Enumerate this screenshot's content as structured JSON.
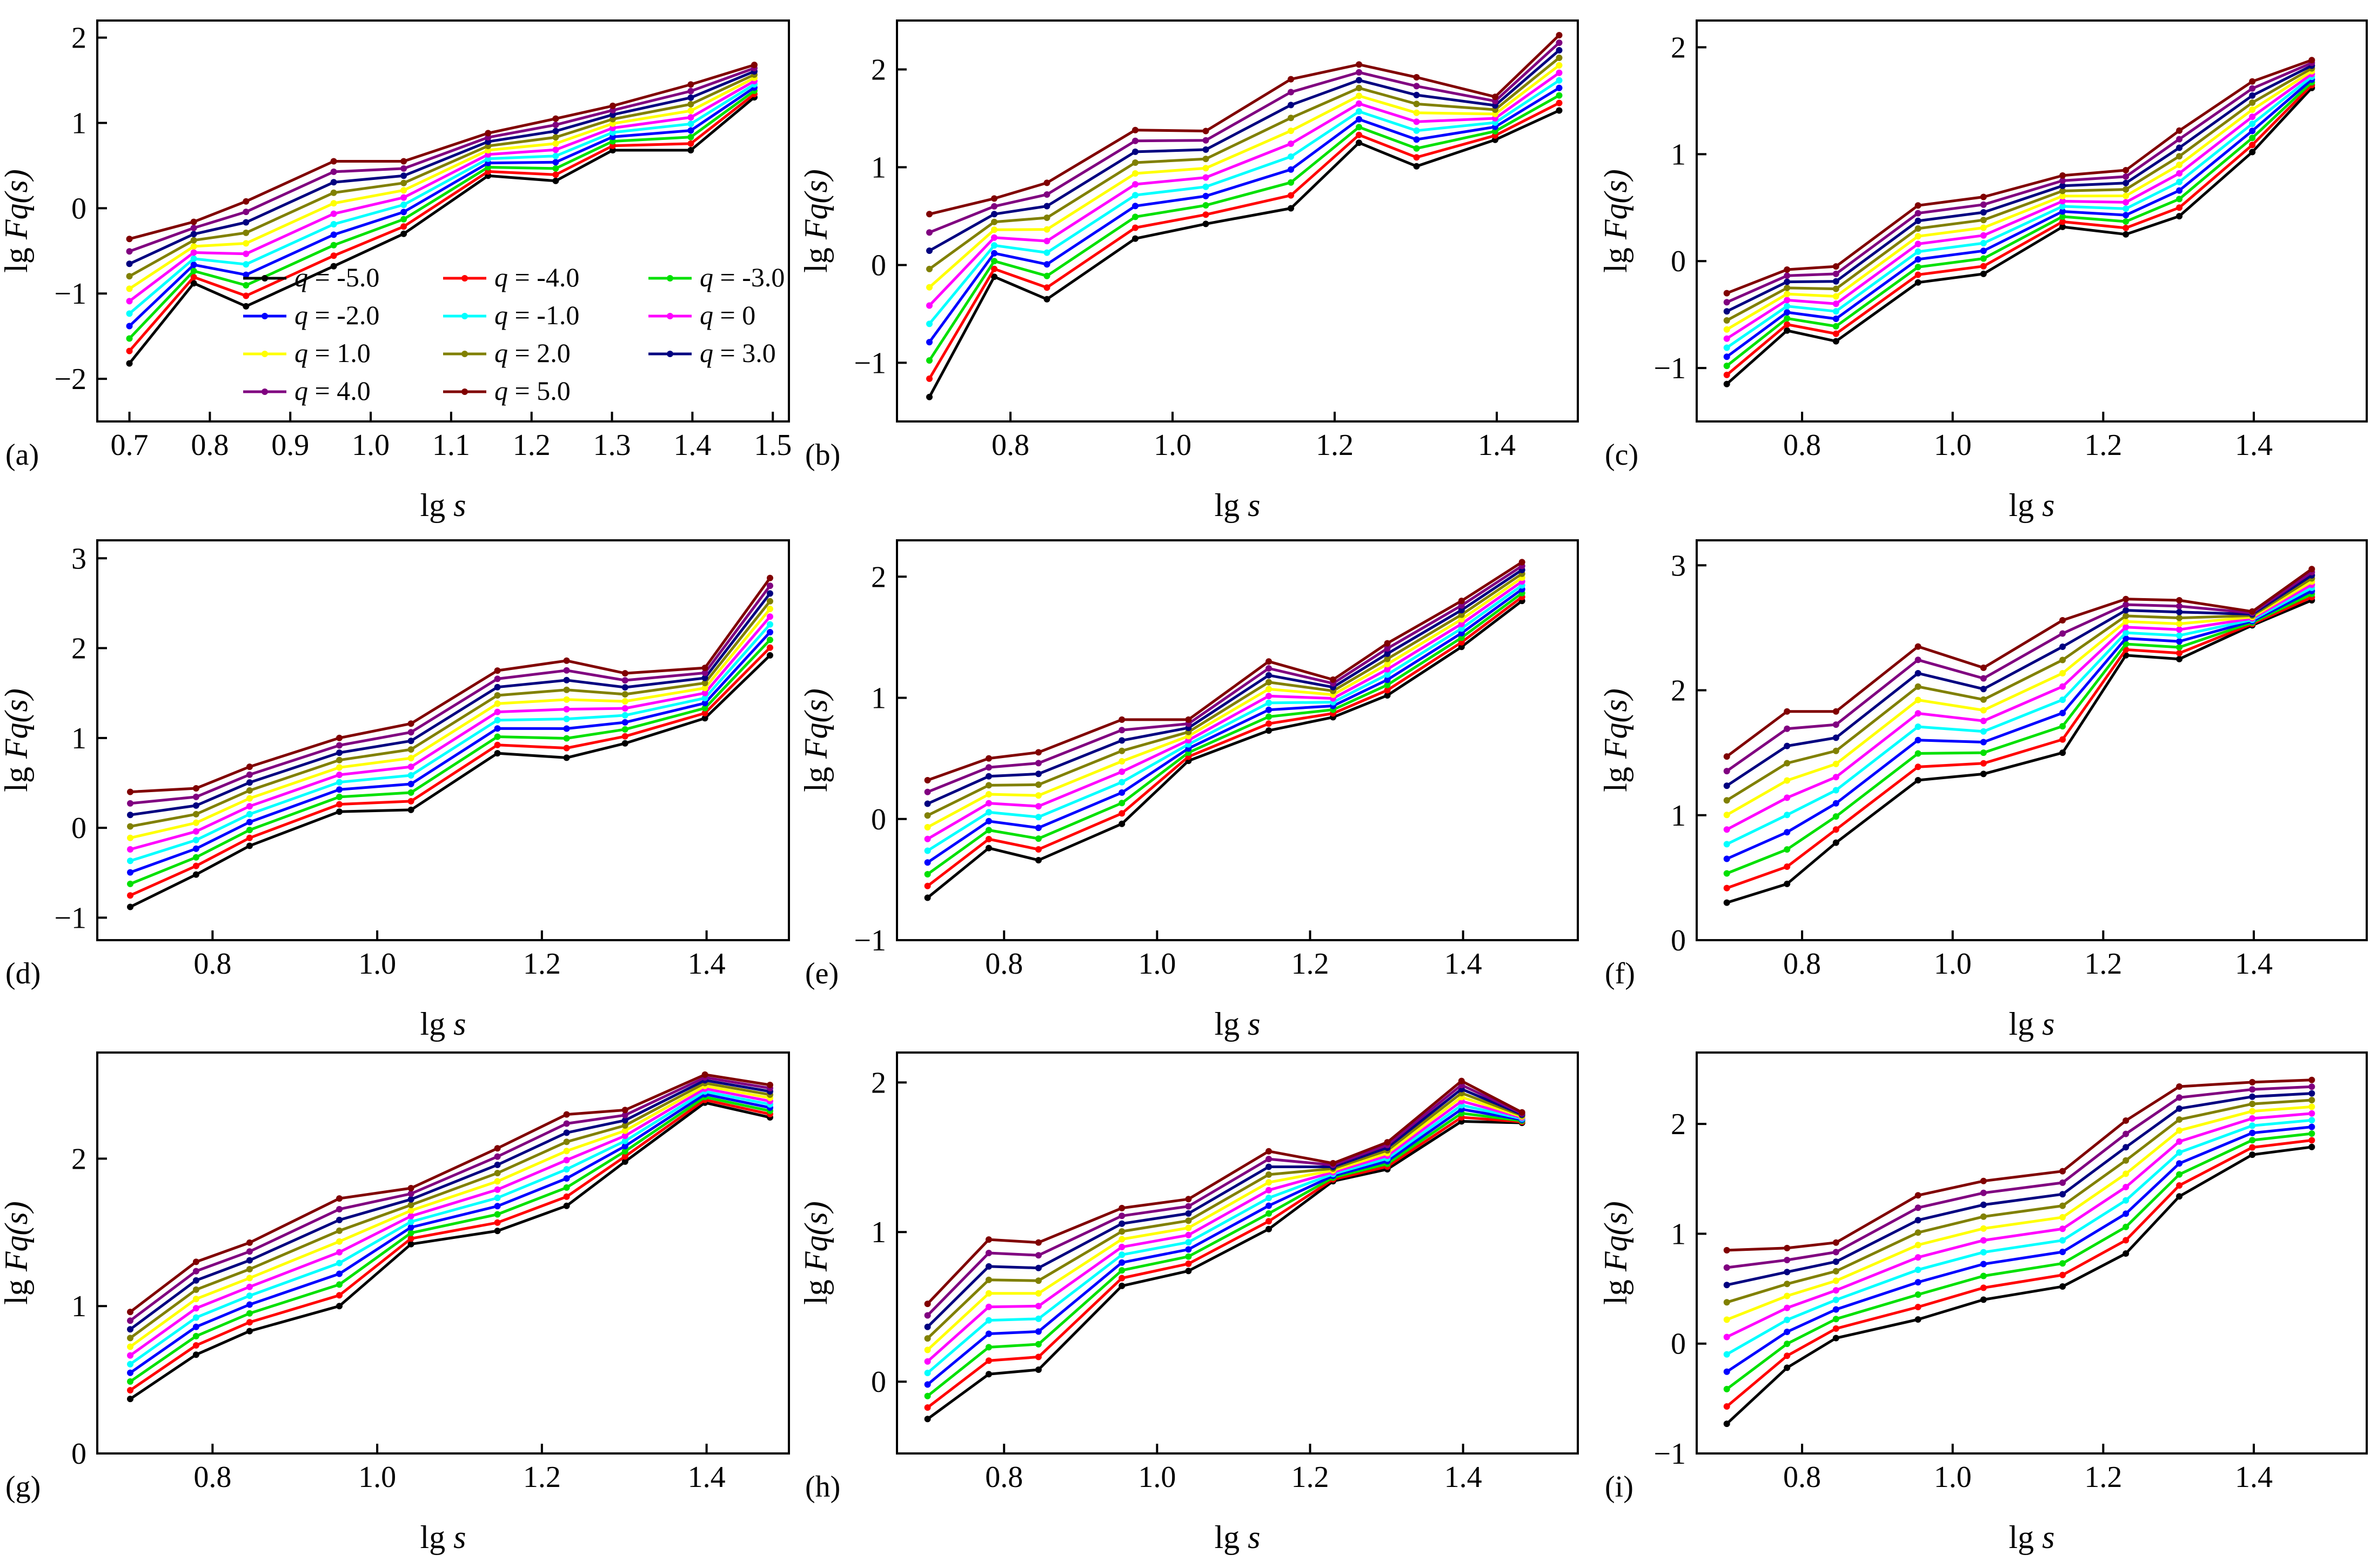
{
  "figure": {
    "x_axis_label": "lg s",
    "y_axis_label": "lg Fq(s)"
  },
  "series_styles": [
    {
      "q": "-5.0",
      "color": "#000000"
    },
    {
      "q": "-4.0",
      "color": "#ff0000"
    },
    {
      "q": "-3.0",
      "color": "#00e000"
    },
    {
      "q": "-2.0",
      "color": "#0000ff"
    },
    {
      "q": "-1.0",
      "color": "#00ffff"
    },
    {
      "q": "0",
      "color": "#ff00ff"
    },
    {
      "q": "1.0",
      "color": "#ffff00"
    },
    {
      "q": "2.0",
      "color": "#808000"
    },
    {
      "q": "3.0",
      "color": "#000080"
    },
    {
      "q": "4.0",
      "color": "#800080"
    },
    {
      "q": "5.0",
      "color": "#800000"
    }
  ],
  "legend": {
    "location": "panel (a), lower right",
    "entries": [
      "q = -5.0",
      "q = -4.0",
      "q = -3.0",
      "q = -2.0",
      "q = -1.0",
      "q = 0",
      "q = 1.0",
      "q = 2.0",
      "q = 3.0",
      "q = 4.0",
      "q = 5.0"
    ]
  },
  "chart_data": [
    {
      "panel": "(a)",
      "type": "line",
      "xlabel": "lg s",
      "ylabel": "lg Fq(s)",
      "xlim": [
        0.66,
        1.52
      ],
      "ylim": [
        -2.5,
        2.2
      ],
      "xticks": [
        "0.7",
        "0.8",
        "0.9",
        "1.0",
        "1.1",
        "1.2",
        "1.3",
        "1.4",
        "1.5"
      ],
      "yticks": [
        "-2",
        "-1",
        "0",
        "1",
        "2"
      ],
      "x": [
        0.7,
        0.78,
        0.845,
        0.954,
        1.041,
        1.146,
        1.23,
        1.301,
        1.398,
        1.477
      ],
      "low": [
        -1.82,
        -0.88,
        -1.15,
        -0.68,
        -0.3,
        0.38,
        0.32,
        0.68,
        0.68,
        1.3
      ],
      "high": [
        -0.36,
        -0.16,
        0.08,
        0.55,
        0.55,
        0.88,
        1.05,
        1.2,
        1.45,
        1.68
      ]
    },
    {
      "panel": "(b)",
      "type": "line",
      "xlabel": "lg s",
      "ylabel": "lg Fq(s)",
      "xlim": [
        0.66,
        1.5
      ],
      "ylim": [
        -1.6,
        2.5
      ],
      "xticks": [
        "0.8",
        "1.0",
        "1.2",
        "1.4"
      ],
      "yticks": [
        "-1",
        "0",
        "1",
        "2"
      ],
      "x": [
        0.7,
        0.78,
        0.845,
        0.954,
        1.041,
        1.146,
        1.23,
        1.301,
        1.398,
        1.477
      ],
      "low": [
        -1.35,
        -0.12,
        -0.35,
        0.27,
        0.42,
        0.58,
        1.25,
        1.01,
        1.28,
        1.58
      ],
      "high": [
        0.52,
        0.68,
        0.84,
        1.38,
        1.37,
        1.9,
        2.05,
        1.92,
        1.72,
        2.35
      ]
    },
    {
      "panel": "(c)",
      "type": "line",
      "xlabel": "lg s",
      "ylabel": "lg Fq(s)",
      "xlim": [
        0.66,
        1.55
      ],
      "ylim": [
        -1.5,
        2.25
      ],
      "xticks": [
        "0.8",
        "1.0",
        "1.2",
        "1.4"
      ],
      "yticks": [
        "-1",
        "0",
        "1",
        "2"
      ],
      "x": [
        0.7,
        0.78,
        0.845,
        0.954,
        1.041,
        1.146,
        1.23,
        1.301,
        1.398,
        1.477
      ],
      "low": [
        -1.15,
        -0.65,
        -0.75,
        -0.2,
        -0.12,
        0.32,
        0.25,
        0.42,
        1.02,
        1.62
      ],
      "high": [
        -0.3,
        -0.08,
        -0.05,
        0.52,
        0.6,
        0.8,
        0.85,
        1.22,
        1.68,
        1.88
      ]
    },
    {
      "panel": "(d)",
      "type": "line",
      "xlabel": "lg s",
      "ylabel": "lg Fq(s)",
      "xlim": [
        0.66,
        1.5
      ],
      "ylim": [
        -1.25,
        3.2
      ],
      "xticks": [
        "0.8",
        "1.0",
        "1.2",
        "1.4"
      ],
      "yticks": [
        "-1",
        "0",
        "1",
        "2",
        "3"
      ],
      "x": [
        0.7,
        0.78,
        0.845,
        0.954,
        1.041,
        1.146,
        1.23,
        1.301,
        1.398,
        1.477
      ],
      "low": [
        -0.88,
        -0.52,
        -0.2,
        0.18,
        0.2,
        0.83,
        0.78,
        0.94,
        1.22,
        1.92
      ],
      "high": [
        0.4,
        0.44,
        0.68,
        1.0,
        1.16,
        1.75,
        1.86,
        1.72,
        1.78,
        2.78
      ]
    },
    {
      "panel": "(e)",
      "type": "line",
      "xlabel": "lg s",
      "ylabel": "lg Fq(s)",
      "xlim": [
        0.66,
        1.55
      ],
      "ylim": [
        -1.0,
        2.3
      ],
      "xticks": [
        "0.8",
        "1.0",
        "1.2",
        "1.4"
      ],
      "yticks": [
        "-1",
        "0",
        "1",
        "2"
      ],
      "x": [
        0.7,
        0.78,
        0.845,
        0.954,
        1.041,
        1.146,
        1.23,
        1.301,
        1.398,
        1.477
      ],
      "low": [
        -0.65,
        -0.24,
        -0.34,
        -0.04,
        0.48,
        0.73,
        0.84,
        1.02,
        1.42,
        1.8
      ],
      "high": [
        0.32,
        0.5,
        0.55,
        0.82,
        0.82,
        1.3,
        1.15,
        1.45,
        1.8,
        2.12
      ]
    },
    {
      "panel": "(f)",
      "type": "line",
      "xlabel": "lg s",
      "ylabel": "lg Fq(s)",
      "xlim": [
        0.66,
        1.55
      ],
      "ylim": [
        0,
        3.2
      ],
      "xticks": [
        "0.8",
        "1.0",
        "1.2",
        "1.4"
      ],
      "yticks": [
        "0",
        "1",
        "2",
        "3"
      ],
      "x": [
        0.7,
        0.78,
        0.845,
        0.954,
        1.041,
        1.146,
        1.23,
        1.301,
        1.398,
        1.477
      ],
      "low": [
        0.3,
        0.45,
        0.78,
        1.28,
        1.33,
        1.5,
        2.28,
        2.25,
        2.52,
        2.72
      ],
      "high": [
        1.47,
        1.83,
        1.83,
        2.35,
        2.18,
        2.56,
        2.73,
        2.72,
        2.63,
        2.97
      ]
    },
    {
      "panel": "(g)",
      "type": "line",
      "xlabel": "lg s",
      "ylabel": "lg Fq(s)",
      "xlim": [
        0.66,
        1.5
      ],
      "ylim": [
        0,
        2.72
      ],
      "xticks": [
        "0.8",
        "1.0",
        "1.2",
        "1.4"
      ],
      "yticks": [
        "0",
        "1",
        "2"
      ],
      "x": [
        0.7,
        0.78,
        0.845,
        0.954,
        1.041,
        1.146,
        1.23,
        1.301,
        1.398,
        1.477
      ],
      "low": [
        0.37,
        0.67,
        0.83,
        1.0,
        1.42,
        1.51,
        1.68,
        1.98,
        2.38,
        2.28
      ],
      "high": [
        0.96,
        1.3,
        1.43,
        1.73,
        1.8,
        2.07,
        2.3,
        2.33,
        2.57,
        2.5
      ]
    },
    {
      "panel": "(h)",
      "type": "line",
      "xlabel": "lg s",
      "ylabel": "lg Fq(s)",
      "xlim": [
        0.66,
        1.55
      ],
      "ylim": [
        -0.48,
        2.2
      ],
      "xticks": [
        "0.8",
        "1.0",
        "1.2",
        "1.4"
      ],
      "yticks": [
        "0",
        "1",
        "2"
      ],
      "x": [
        0.7,
        0.78,
        0.845,
        0.954,
        1.041,
        1.146,
        1.23,
        1.301,
        1.398,
        1.477
      ],
      "low": [
        -0.25,
        0.05,
        0.08,
        0.64,
        0.74,
        1.02,
        1.34,
        1.42,
        1.74,
        1.73
      ],
      "high": [
        0.52,
        0.95,
        0.93,
        1.16,
        1.22,
        1.54,
        1.46,
        1.6,
        2.01,
        1.8
      ]
    },
    {
      "panel": "(i)",
      "type": "line",
      "xlabel": "lg s",
      "ylabel": "lg Fq(s)",
      "xlim": [
        0.66,
        1.55
      ],
      "ylim": [
        -1.0,
        2.65
      ],
      "xticks": [
        "0.8",
        "1.0",
        "1.2",
        "1.4"
      ],
      "yticks": [
        "-1",
        "0",
        "1",
        "2"
      ],
      "x": [
        0.7,
        0.78,
        0.845,
        0.954,
        1.041,
        1.146,
        1.23,
        1.301,
        1.398,
        1.477
      ],
      "low": [
        -0.73,
        -0.22,
        0.05,
        0.22,
        0.4,
        0.52,
        0.82,
        1.34,
        1.72,
        1.79
      ],
      "high": [
        0.85,
        0.87,
        0.92,
        1.35,
        1.48,
        1.57,
        2.03,
        2.34,
        2.38,
        2.4
      ]
    }
  ]
}
